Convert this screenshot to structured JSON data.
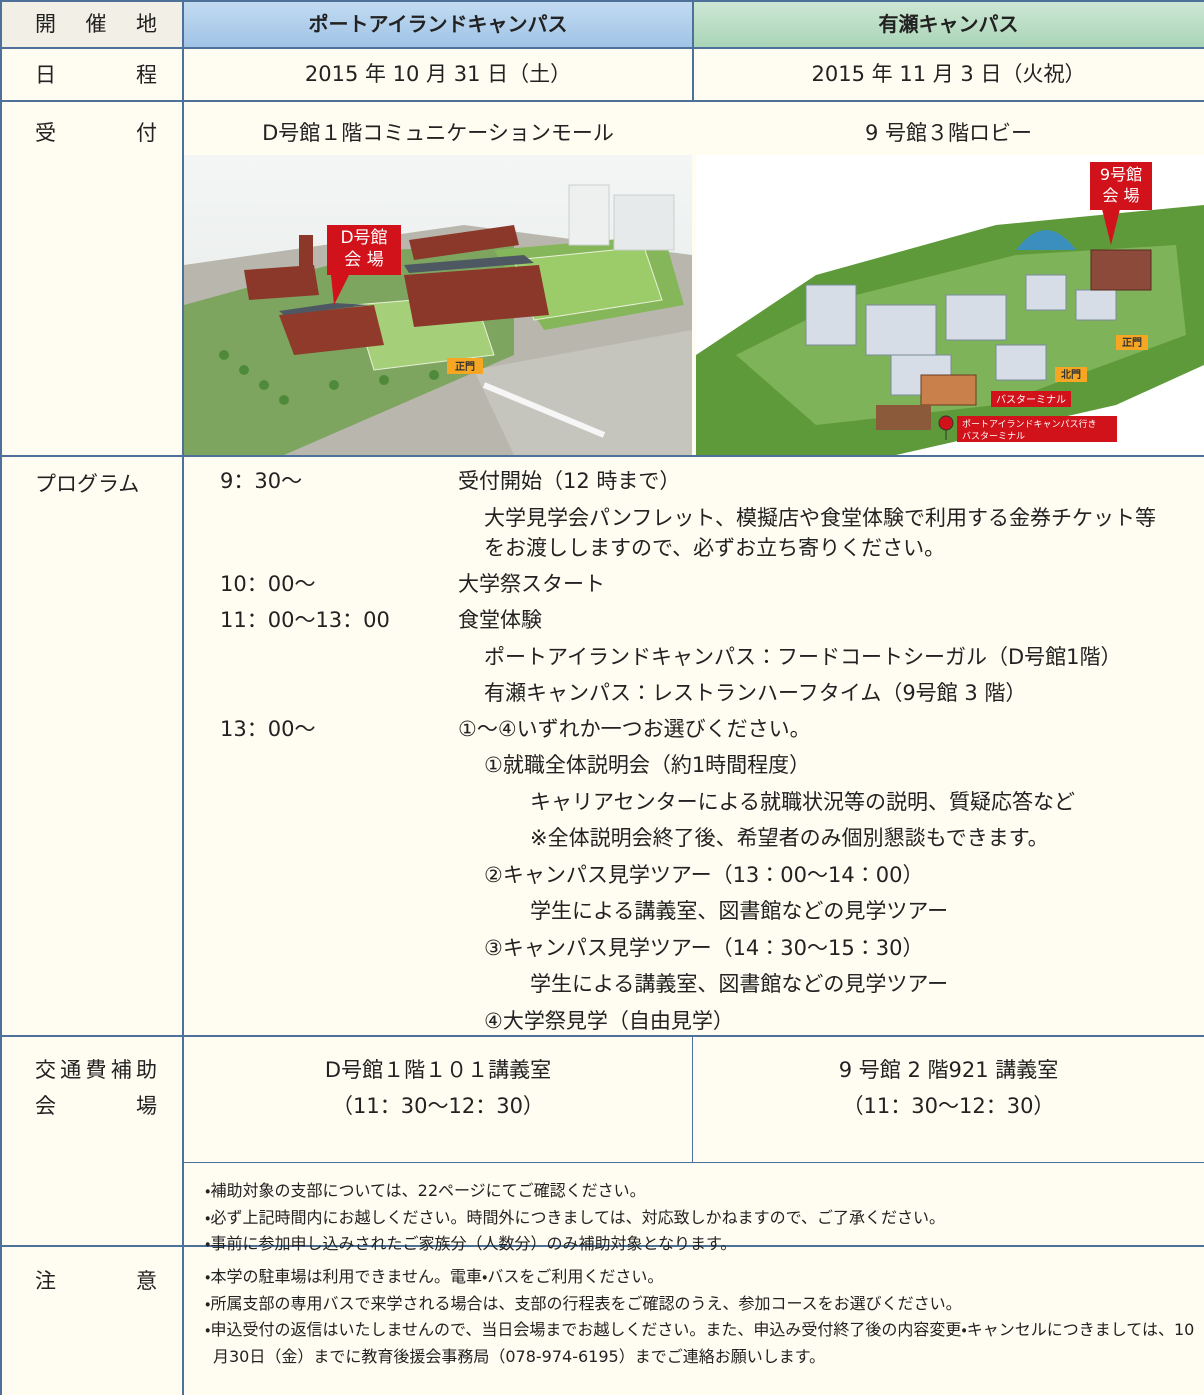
{
  "header": {
    "label": "開催地",
    "port": "ポートアイランドキャンパス",
    "arise": "有瀬キャンパス"
  },
  "schedule": {
    "label": "日程",
    "port": "2015 年 10 月 31 日（土）",
    "arise": "2015 年 11 月 3 日（火祝）"
  },
  "reception": {
    "label": "受付",
    "port": {
      "text": "D号館１階コミュニケーションモール",
      "venue": [
        "D号館",
        "会 場"
      ],
      "gate": "正門"
    },
    "arise": {
      "text": "9 号館３階ロビー",
      "venue": [
        "9号館",
        "会 場"
      ],
      "gate": "正門",
      "north_gate": "北門",
      "bus": "バスターミナル",
      "bus_port": [
        "ポートアイランドキャンパス行き",
        "バスターミナル"
      ]
    }
  },
  "program": {
    "label": "プログラム",
    "entries": [
      {
        "time": "9：30～",
        "title": "受付開始（12 時まで）",
        "notes": [
          "大学見学会パンフレット、模擬店や食堂体験で利用する金券チケット等をお渡ししますので、必ずお立ち寄りください。"
        ]
      },
      {
        "time": "10：00～",
        "title": "大学祭スタート"
      },
      {
        "time": "11：00～13：00",
        "title": "食堂体験",
        "notes": [
          "ポートアイランドキャンパス：フードコートシーガル（D号館1階）",
          "有瀬キャンパス：レストランハーフタイム（9号館 3 階）"
        ]
      },
      {
        "time": "13：00～",
        "title": "①～④いずれか一つお選びください。",
        "options": [
          {
            "title": "①就職全体説明会（約1時間程度）",
            "notes": [
              "キャリアセンターによる就職状況等の説明、質疑応答など",
              "※全体説明会終了後、希望者のみ個別懇談もできます。"
            ]
          },
          {
            "title": "②キャンパス見学ツアー（13：00～14：00）",
            "notes": [
              "学生による講義室、図書館などの見学ツアー"
            ]
          },
          {
            "title": "③キャンパス見学ツアー（14：30～15：30）",
            "notes": [
              "学生による講義室、図書館などの見学ツアー"
            ]
          },
          {
            "title": "④大学祭見学（自由見学）"
          }
        ]
      }
    ]
  },
  "transit": {
    "label": [
      "交通費補助",
      "会場"
    ],
    "port": [
      "D号館１階１０１講義室",
      "（11：30～12：30）"
    ],
    "arise": [
      "9 号館 2 階921 講義室",
      "（11：30～12：30）"
    ],
    "notes": [
      "・補助対象の支部については、22ページにてご確認ください。",
      "・必ず上記時間内にお越しください。時間外につきましては、対応致しかねますので、ご了承ください。",
      "・事前に参加申し込みされたご家族分（人数分）のみ補助対象となります。"
    ]
  },
  "caution": {
    "label": "注意",
    "notes": [
      "・本学の駐車場は利用できません。電車・バスをご利用ください。",
      "・所属支部の専用バスで来学される場合は、支部の行程表をご確認のうえ、参加コースをお選びください。",
      "・申込受付の返信はいたしませんので、当日会場までお越しください。また、申込み受付終了後の内容変更・キャンセルにつきましては、10月30日（金）までに教育後援会事務局（078-974-6195）までご連絡お願いします。"
    ]
  }
}
